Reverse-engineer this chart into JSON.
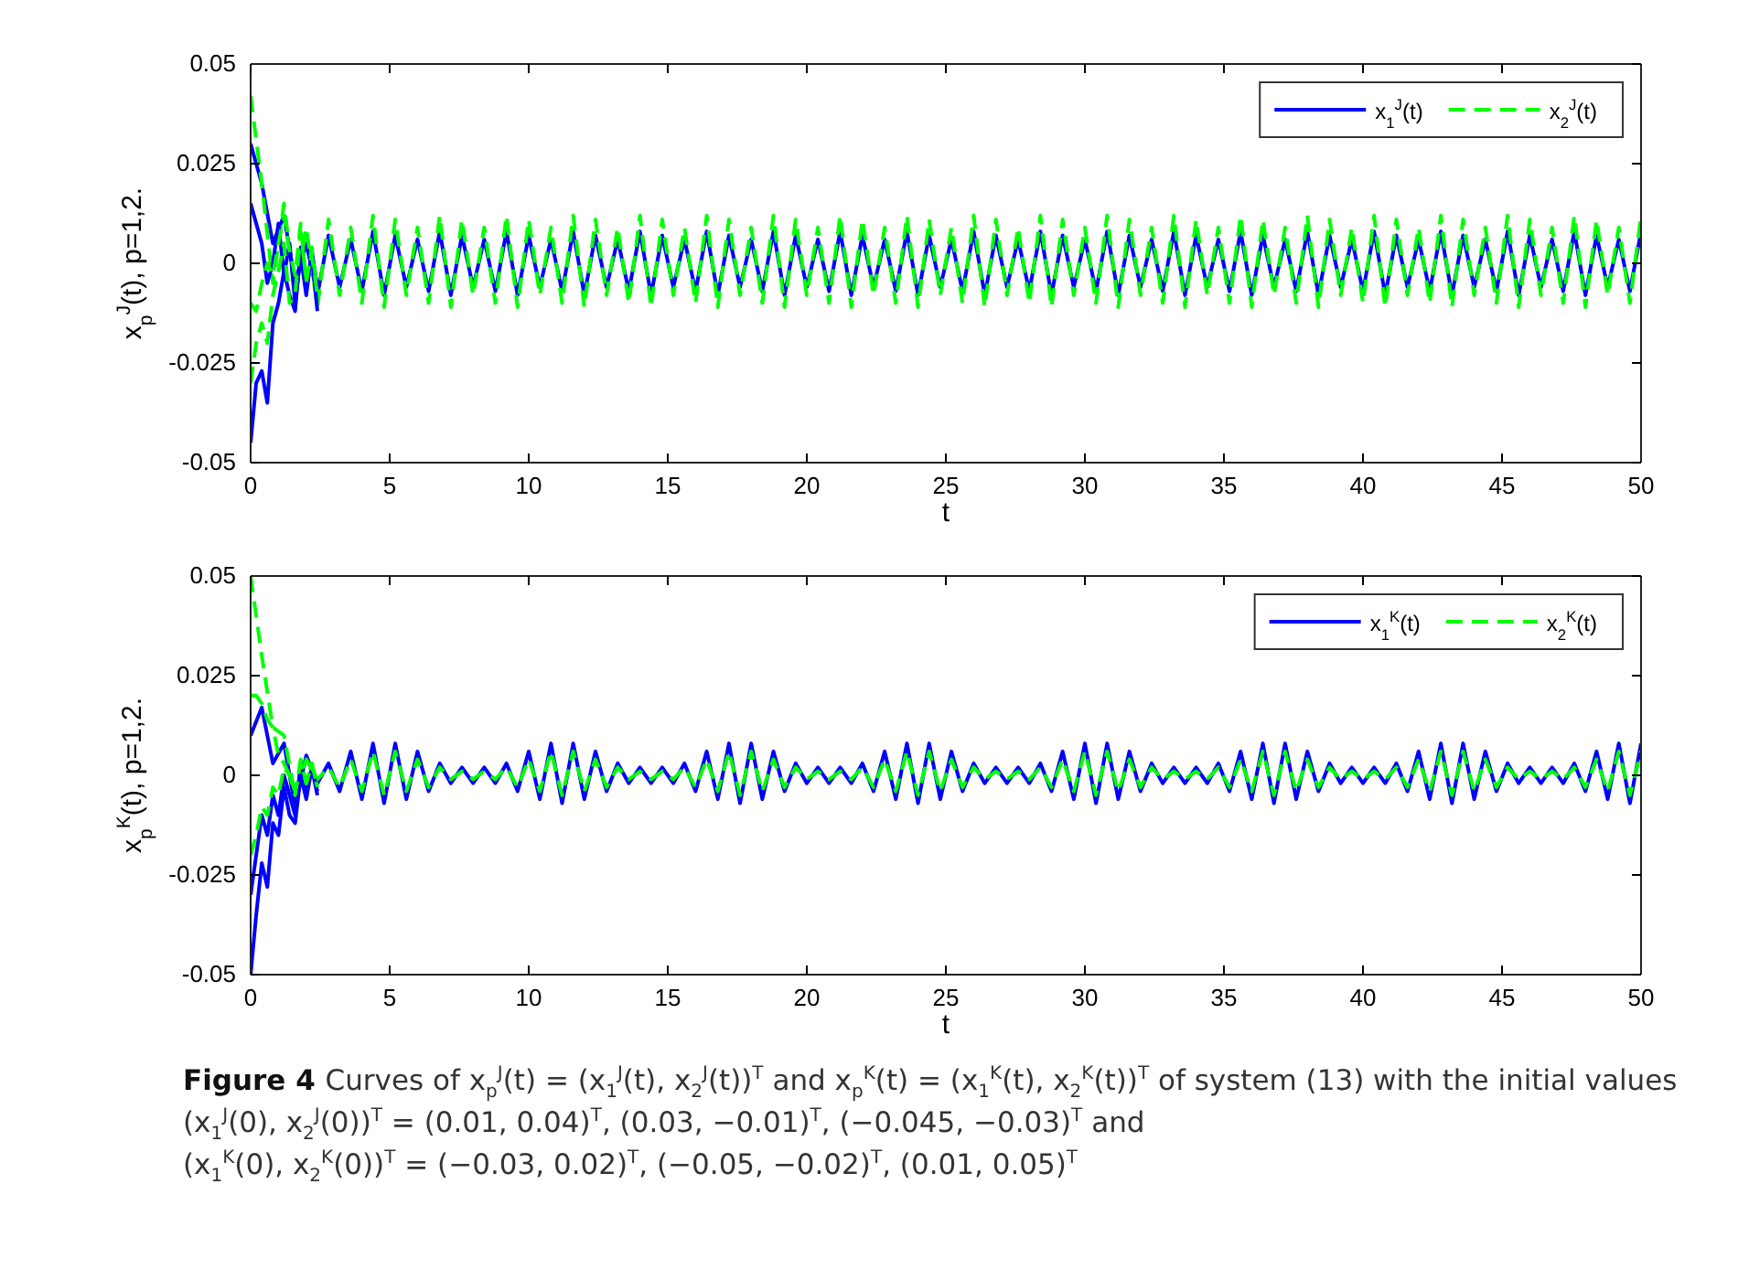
{
  "chart_data": [
    {
      "type": "line",
      "xlabel": "t",
      "ylabel": "x$_{p}$$^{J}$(t), p=1,2.",
      "xlim": [
        0,
        50
      ],
      "ylim": [
        -0.05,
        0.05
      ],
      "xticks": [
        0,
        5,
        10,
        15,
        20,
        25,
        30,
        35,
        40,
        45,
        50
      ],
      "yticks": [
        -0.05,
        -0.025,
        0,
        0.025,
        0.05
      ],
      "legend": "top right",
      "grid": false,
      "x": [
        0,
        0.4,
        0.8,
        1.2,
        1.6,
        2,
        2.4,
        2.8,
        3.2,
        3.6,
        4,
        4.4,
        4.8,
        5.2,
        5.6,
        6,
        6.4,
        6.8,
        7.2,
        7.6,
        8,
        8.4,
        8.8,
        9.2,
        9.6,
        10,
        10.4,
        10.8,
        11.2,
        11.6,
        12,
        12.4,
        12.8,
        13.2,
        13.6,
        14,
        14.4,
        14.8,
        15.2,
        15.6,
        16,
        16.4,
        16.8,
        17.2,
        17.6,
        18,
        18.4,
        18.8,
        19.2,
        19.6,
        20,
        20.4,
        20.8,
        21.2,
        21.6,
        22,
        22.4,
        22.8,
        23.2,
        23.6,
        24,
        24.4,
        24.8,
        25.2,
        25.6,
        26,
        26.4,
        26.8,
        27.2,
        27.6,
        28,
        28.4,
        28.8,
        29.2,
        29.6,
        30,
        30.4,
        30.8,
        31.2,
        31.6,
        32,
        32.4,
        32.8,
        33.2,
        33.6,
        34,
        34.4,
        34.8,
        35.2,
        35.6,
        36,
        36.4,
        36.8,
        37.2,
        37.6,
        38,
        38.4,
        38.8,
        39.2,
        39.6,
        40,
        40.4,
        40.8,
        41.2,
        41.6,
        42,
        42.4,
        42.8,
        43.2,
        43.6,
        44,
        44.4,
        44.8,
        45.2,
        45.6,
        46,
        46.4,
        46.8,
        47.2,
        47.6,
        48,
        48.4,
        48.8,
        49.2,
        49.6,
        50
      ],
      "series": [
        {
          "name": "x$_{1}$$^{J}$(t)",
          "color": "#0000ff",
          "line_style": "solid",
          "values": [
            0.03,
            0.02,
            0.005,
            0.012,
            -0.005,
            0.005,
            -0.008,
            0.007,
            -0.006,
            0.006,
            -0.007,
            0.008,
            -0.008,
            0.007,
            -0.006,
            0.006,
            -0.007,
            0.008,
            -0.008,
            0.007,
            -0.006,
            0.006,
            -0.007,
            0.008,
            -0.008,
            0.007,
            -0.006,
            0.006,
            -0.007,
            0.008,
            -0.008,
            0.007,
            -0.006,
            0.006,
            -0.007,
            0.008,
            -0.008,
            0.007,
            -0.006,
            0.006,
            -0.007,
            0.008,
            -0.008,
            0.007,
            -0.006,
            0.006,
            -0.007,
            0.008,
            -0.008,
            0.007,
            -0.006,
            0.006,
            -0.007,
            0.008,
            -0.008,
            0.007,
            -0.006,
            0.006,
            -0.007,
            0.008,
            -0.008,
            0.007,
            -0.006,
            0.006,
            -0.007,
            0.008,
            -0.008,
            0.007,
            -0.006,
            0.006,
            -0.007,
            0.008,
            -0.008,
            0.007,
            -0.006,
            0.006,
            -0.007,
            0.008,
            -0.008,
            0.007,
            -0.006,
            0.006,
            -0.007,
            0.008,
            -0.008,
            0.007,
            -0.006,
            0.006,
            -0.007,
            0.008,
            -0.008,
            0.007,
            -0.006,
            0.006,
            -0.007,
            0.008,
            -0.008,
            0.007,
            -0.006,
            0.006,
            -0.007,
            0.008,
            -0.008,
            0.007,
            -0.006,
            0.006,
            -0.007,
            0.008,
            -0.008,
            0.007,
            -0.006,
            0.006,
            -0.007,
            0.008,
            -0.008,
            0.007,
            -0.006,
            0.006,
            -0.007,
            0.008,
            -0.008,
            0.007,
            -0.006,
            0.006,
            -0.007,
            0.008
          ]
        },
        {
          "name": "x$_{2}$$^{J}$(t)",
          "color": "#00ff00",
          "line_style": "dashed",
          "values": [
            0.042,
            0.02,
            -0.005,
            0.015,
            -0.008,
            0.009,
            -0.011,
            0.011,
            -0.008,
            0.009,
            -0.01,
            0.012,
            -0.011,
            0.011,
            -0.008,
            0.009,
            -0.01,
            0.012,
            -0.011,
            0.011,
            -0.008,
            0.009,
            -0.01,
            0.012,
            -0.011,
            0.011,
            -0.008,
            0.009,
            -0.01,
            0.012,
            -0.011,
            0.011,
            -0.008,
            0.009,
            -0.01,
            0.012,
            -0.011,
            0.011,
            -0.008,
            0.009,
            -0.01,
            0.012,
            -0.011,
            0.011,
            -0.008,
            0.009,
            -0.01,
            0.012,
            -0.011,
            0.011,
            -0.008,
            0.009,
            -0.01,
            0.012,
            -0.011,
            0.011,
            -0.008,
            0.009,
            -0.01,
            0.012,
            -0.011,
            0.011,
            -0.008,
            0.009,
            -0.01,
            0.012,
            -0.011,
            0.011,
            -0.008,
            0.009,
            -0.01,
            0.012,
            -0.011,
            0.011,
            -0.008,
            0.009,
            -0.01,
            0.012,
            -0.011,
            0.011,
            -0.008,
            0.009,
            -0.01,
            0.012,
            -0.011,
            0.011,
            -0.008,
            0.009,
            -0.01,
            0.012,
            -0.011,
            0.011,
            -0.008,
            0.009,
            -0.01,
            0.012,
            -0.011,
            0.011,
            -0.008,
            0.009,
            -0.01,
            0.012,
            -0.011,
            0.011,
            -0.008,
            0.009,
            -0.01,
            0.012,
            -0.011,
            0.011,
            -0.008,
            0.009,
            -0.01,
            0.012,
            -0.011,
            0.011,
            -0.008,
            0.009,
            -0.01,
            0.012,
            -0.011,
            0.011,
            -0.008,
            0.009,
            -0.01,
            0.012
          ]
        },
        {
          "color": "#0000ff",
          "line_style": "solid",
          "x": [
            0,
            0.2,
            0.4,
            0.6,
            0.8,
            1,
            1.2,
            1.4,
            1.6,
            1.8,
            2,
            2.2,
            2.4
          ],
          "values": [
            0.015,
            0.01,
            0.005,
            -0.005,
            0,
            0.01,
            -0.003,
            0.005,
            -0.01,
            0.002,
            -0.008,
            0.003,
            -0.006
          ]
        },
        {
          "color": "#0000ff",
          "line_style": "solid",
          "x": [
            0,
            0.2,
            0.4,
            0.6,
            0.8,
            1,
            1.2,
            1.4,
            1.6,
            1.8,
            2,
            2.2,
            2.4
          ],
          "values": [
            -0.045,
            -0.03,
            -0.027,
            -0.035,
            -0.015,
            -0.01,
            -0.002,
            -0.008,
            -0.012,
            0.004,
            -0.005,
            0.002,
            -0.012
          ]
        },
        {
          "color": "#00ff00",
          "line_style": "dashed",
          "x": [
            0,
            0.2,
            0.4,
            0.6,
            0.8,
            1,
            1.2,
            1.4,
            1.6,
            1.8,
            2,
            2.2,
            2.4
          ],
          "values": [
            -0.01,
            -0.012,
            -0.005,
            0,
            -0.003,
            0.005,
            0.012,
            0.003,
            -0.003,
            0.01,
            -0.005,
            0.004,
            -0.007
          ]
        },
        {
          "color": "#00ff00",
          "line_style": "dashed",
          "x": [
            0,
            0.2,
            0.4,
            0.6,
            0.8,
            1,
            1.2,
            1.4,
            1.6,
            1.8,
            2,
            2.2,
            2.4
          ],
          "values": [
            -0.03,
            -0.02,
            -0.015,
            -0.02,
            -0.008,
            -0.002,
            0.005,
            -0.01,
            -0.008,
            0.008,
            -0.004,
            0.002,
            -0.008
          ]
        }
      ]
    },
    {
      "type": "line",
      "xlabel": "t",
      "ylabel": "x$_{p}$$^{K}$(t), p=1,2.",
      "xlim": [
        0,
        50
      ],
      "ylim": [
        -0.05,
        0.05
      ],
      "xticks": [
        0,
        5,
        10,
        15,
        20,
        25,
        30,
        35,
        40,
        45,
        50
      ],
      "yticks": [
        -0.05,
        -0.025,
        0,
        0.025,
        0.05
      ],
      "legend": "top right",
      "grid": false,
      "x": [
        0,
        0.4,
        0.8,
        1.2,
        1.6,
        2,
        2.4,
        2.8,
        3.2,
        3.6,
        4,
        4.4,
        4.8,
        5.2,
        5.6,
        6,
        6.4,
        6.8,
        7.2,
        7.6,
        8,
        8.4,
        8.8,
        9.2,
        9.6,
        10,
        10.4,
        10.8,
        11.2,
        11.6,
        12,
        12.4,
        12.8,
        13.2,
        13.6,
        14,
        14.4,
        14.8,
        15.2,
        15.6,
        16,
        16.4,
        16.8,
        17.2,
        17.6,
        18,
        18.4,
        18.8,
        19.2,
        19.6,
        20,
        20.4,
        20.8,
        21.2,
        21.6,
        22,
        22.4,
        22.8,
        23.2,
        23.6,
        24,
        24.4,
        24.8,
        25.2,
        25.6,
        26,
        26.4,
        26.8,
        27.2,
        27.6,
        28,
        28.4,
        28.8,
        29.2,
        29.6,
        30,
        30.4,
        30.8,
        31.2,
        31.6,
        32,
        32.4,
        32.8,
        33.2,
        33.6,
        34,
        34.4,
        34.8,
        35.2,
        35.6,
        36,
        36.4,
        36.8,
        37.2,
        37.6,
        38,
        38.4,
        38.8,
        39.2,
        39.6,
        40,
        40.4,
        40.8,
        41.2,
        41.6,
        42,
        42.4,
        42.8,
        43.2,
        43.6,
        44,
        44.4,
        44.8,
        45.2,
        45.6,
        46,
        46.4,
        46.8,
        47.2,
        47.6,
        48,
        48.4,
        48.8,
        49.2,
        49.6,
        50
      ],
      "series": [
        {
          "name": "x$_{1}$$^{K}$(t)",
          "color": "#0000ff",
          "line_style": "solid",
          "values": [
            0.01,
            0.017,
            0.003,
            0.008,
            -0.008,
            0.005,
            -0.002,
            0.003,
            -0.004,
            0.006,
            -0.006,
            0.008,
            -0.007,
            0.008,
            -0.006,
            0.006,
            -0.004,
            0.003,
            -0.002,
            0.002,
            -0.002,
            0.002,
            -0.002,
            0.003,
            -0.004,
            0.006,
            -0.006,
            0.008,
            -0.007,
            0.008,
            -0.006,
            0.006,
            -0.004,
            0.003,
            -0.002,
            0.002,
            -0.002,
            0.002,
            -0.002,
            0.003,
            -0.004,
            0.006,
            -0.006,
            0.008,
            -0.007,
            0.008,
            -0.006,
            0.006,
            -0.004,
            0.003,
            -0.002,
            0.002,
            -0.002,
            0.002,
            -0.002,
            0.003,
            -0.004,
            0.006,
            -0.006,
            0.008,
            -0.007,
            0.008,
            -0.006,
            0.006,
            -0.004,
            0.003,
            -0.002,
            0.002,
            -0.002,
            0.002,
            -0.002,
            0.003,
            -0.004,
            0.006,
            -0.006,
            0.008,
            -0.007,
            0.008,
            -0.006,
            0.006,
            -0.004,
            0.003,
            -0.002,
            0.002,
            -0.002,
            0.002,
            -0.002,
            0.003,
            -0.004,
            0.006,
            -0.006,
            0.008,
            -0.007,
            0.008,
            -0.006,
            0.006,
            -0.004,
            0.003,
            -0.002,
            0.002,
            -0.002,
            0.002,
            -0.002,
            0.003,
            -0.004,
            0.006,
            -0.006,
            0.008,
            -0.007,
            0.008,
            -0.006,
            0.006,
            -0.004,
            0.003,
            -0.002,
            0.002,
            -0.002,
            0.002,
            -0.002,
            0.003,
            -0.004,
            0.006,
            -0.006,
            0.008,
            -0.007,
            0.008
          ]
        },
        {
          "name": "x$_{2}$$^{K}$(t)",
          "color": "#00ff00",
          "line_style": "dashed",
          "values": [
            0.05,
            0.03,
            0.012,
            0.01,
            -0.005,
            0.004,
            -0.001,
            0.002,
            -0.003,
            0.004,
            -0.004,
            0.006,
            -0.005,
            0.006,
            -0.004,
            0.004,
            -0.003,
            0.002,
            -0.001,
            0.001,
            -0.001,
            0.001,
            -0.001,
            0.002,
            -0.003,
            0.004,
            -0.004,
            0.006,
            -0.005,
            0.006,
            -0.004,
            0.004,
            -0.003,
            0.002,
            -0.001,
            0.001,
            -0.001,
            0.001,
            -0.001,
            0.002,
            -0.003,
            0.004,
            -0.004,
            0.006,
            -0.005,
            0.006,
            -0.004,
            0.004,
            -0.003,
            0.002,
            -0.001,
            0.001,
            -0.001,
            0.001,
            -0.001,
            0.002,
            -0.003,
            0.004,
            -0.004,
            0.006,
            -0.005,
            0.006,
            -0.004,
            0.004,
            -0.003,
            0.002,
            -0.001,
            0.001,
            -0.001,
            0.001,
            -0.001,
            0.002,
            -0.003,
            0.004,
            -0.004,
            0.006,
            -0.005,
            0.006,
            -0.004,
            0.004,
            -0.003,
            0.002,
            -0.001,
            0.001,
            -0.001,
            0.001,
            -0.001,
            0.002,
            -0.003,
            0.004,
            -0.004,
            0.006,
            -0.005,
            0.006,
            -0.004,
            0.004,
            -0.003,
            0.002,
            -0.001,
            0.001,
            -0.001,
            0.001,
            -0.001,
            0.002,
            -0.003,
            0.004,
            -0.004,
            0.006,
            -0.005,
            0.006,
            -0.004,
            0.004,
            -0.003,
            0.002,
            -0.001,
            0.001,
            -0.001,
            0.001,
            -0.001,
            0.002,
            -0.003,
            0.004,
            -0.004,
            0.006,
            -0.005,
            0.006
          ]
        },
        {
          "color": "#0000ff",
          "line_style": "solid",
          "x": [
            0,
            0.2,
            0.4,
            0.6,
            0.8,
            1,
            1.2,
            1.4,
            1.6,
            1.8,
            2,
            2.2,
            2.4
          ],
          "values": [
            -0.03,
            -0.02,
            -0.01,
            -0.015,
            -0.005,
            -0.01,
            0,
            -0.005,
            -0.01,
            0.003,
            -0.004,
            0.002,
            -0.004
          ]
        },
        {
          "color": "#0000ff",
          "line_style": "solid",
          "x": [
            0,
            0.2,
            0.4,
            0.6,
            0.8,
            1,
            1.2,
            1.4,
            1.6,
            1.8,
            2,
            2.2,
            2.4
          ],
          "values": [
            -0.05,
            -0.035,
            -0.022,
            -0.028,
            -0.012,
            -0.015,
            -0.003,
            -0.01,
            -0.012,
            0,
            -0.006,
            0.002,
            -0.005
          ]
        },
        {
          "color": "#00ff00",
          "line_style": "dashed",
          "x": [
            0,
            0.2,
            0.4,
            0.6,
            0.8,
            1,
            1.2,
            1.4,
            1.6,
            1.8,
            2,
            2.2,
            2.4
          ],
          "values": [
            0.02,
            0.02,
            0.018,
            0.014,
            0.012,
            0.005,
            0.003,
            0,
            -0.004,
            0.003,
            -0.002,
            0.003,
            -0.003
          ]
        },
        {
          "color": "#00ff00",
          "line_style": "dashed",
          "x": [
            0,
            0.2,
            0.4,
            0.6,
            0.8,
            1,
            1.2,
            1.4,
            1.6,
            1.8,
            2,
            2.2,
            2.4
          ],
          "values": [
            -0.02,
            -0.015,
            -0.008,
            -0.01,
            -0.003,
            -0.005,
            0.002,
            0,
            -0.005,
            0.004,
            -0.002,
            0.003,
            -0.003
          ]
        }
      ],
      "annotations": [
        "Figure 4",
        "Curves of x$_{p}$$^{J}$(t) = (x$_{1}$$^{J}$(t), x$_{2}$$^{J}$(t))$^{T}$ and x$_{p}$$^{K}$(t) = (x$_{1}$$^{K}$(t), x$_{2}$$^{K}$(t))$^{T}$ of system (13) with the initial values",
        "(x$_{1}$$^{J}$(0), x$_{2}$$^{J}$(0))$^{T}$ = (0.01, 0.04)$^{T}$, (0.03, −0.01)$^{T}$, (−0.045, −0.03)$^{T}$ and",
        "(x$_{1}$$^{K}$(0), x$_{2}$$^{K}$(0))$^{T}$ = (−0.03, 0.02)$^{T}$, (−0.05, −0.02)$^{T}$, (0.01, 0.05)$^{T}$"
      ]
    }
  ]
}
